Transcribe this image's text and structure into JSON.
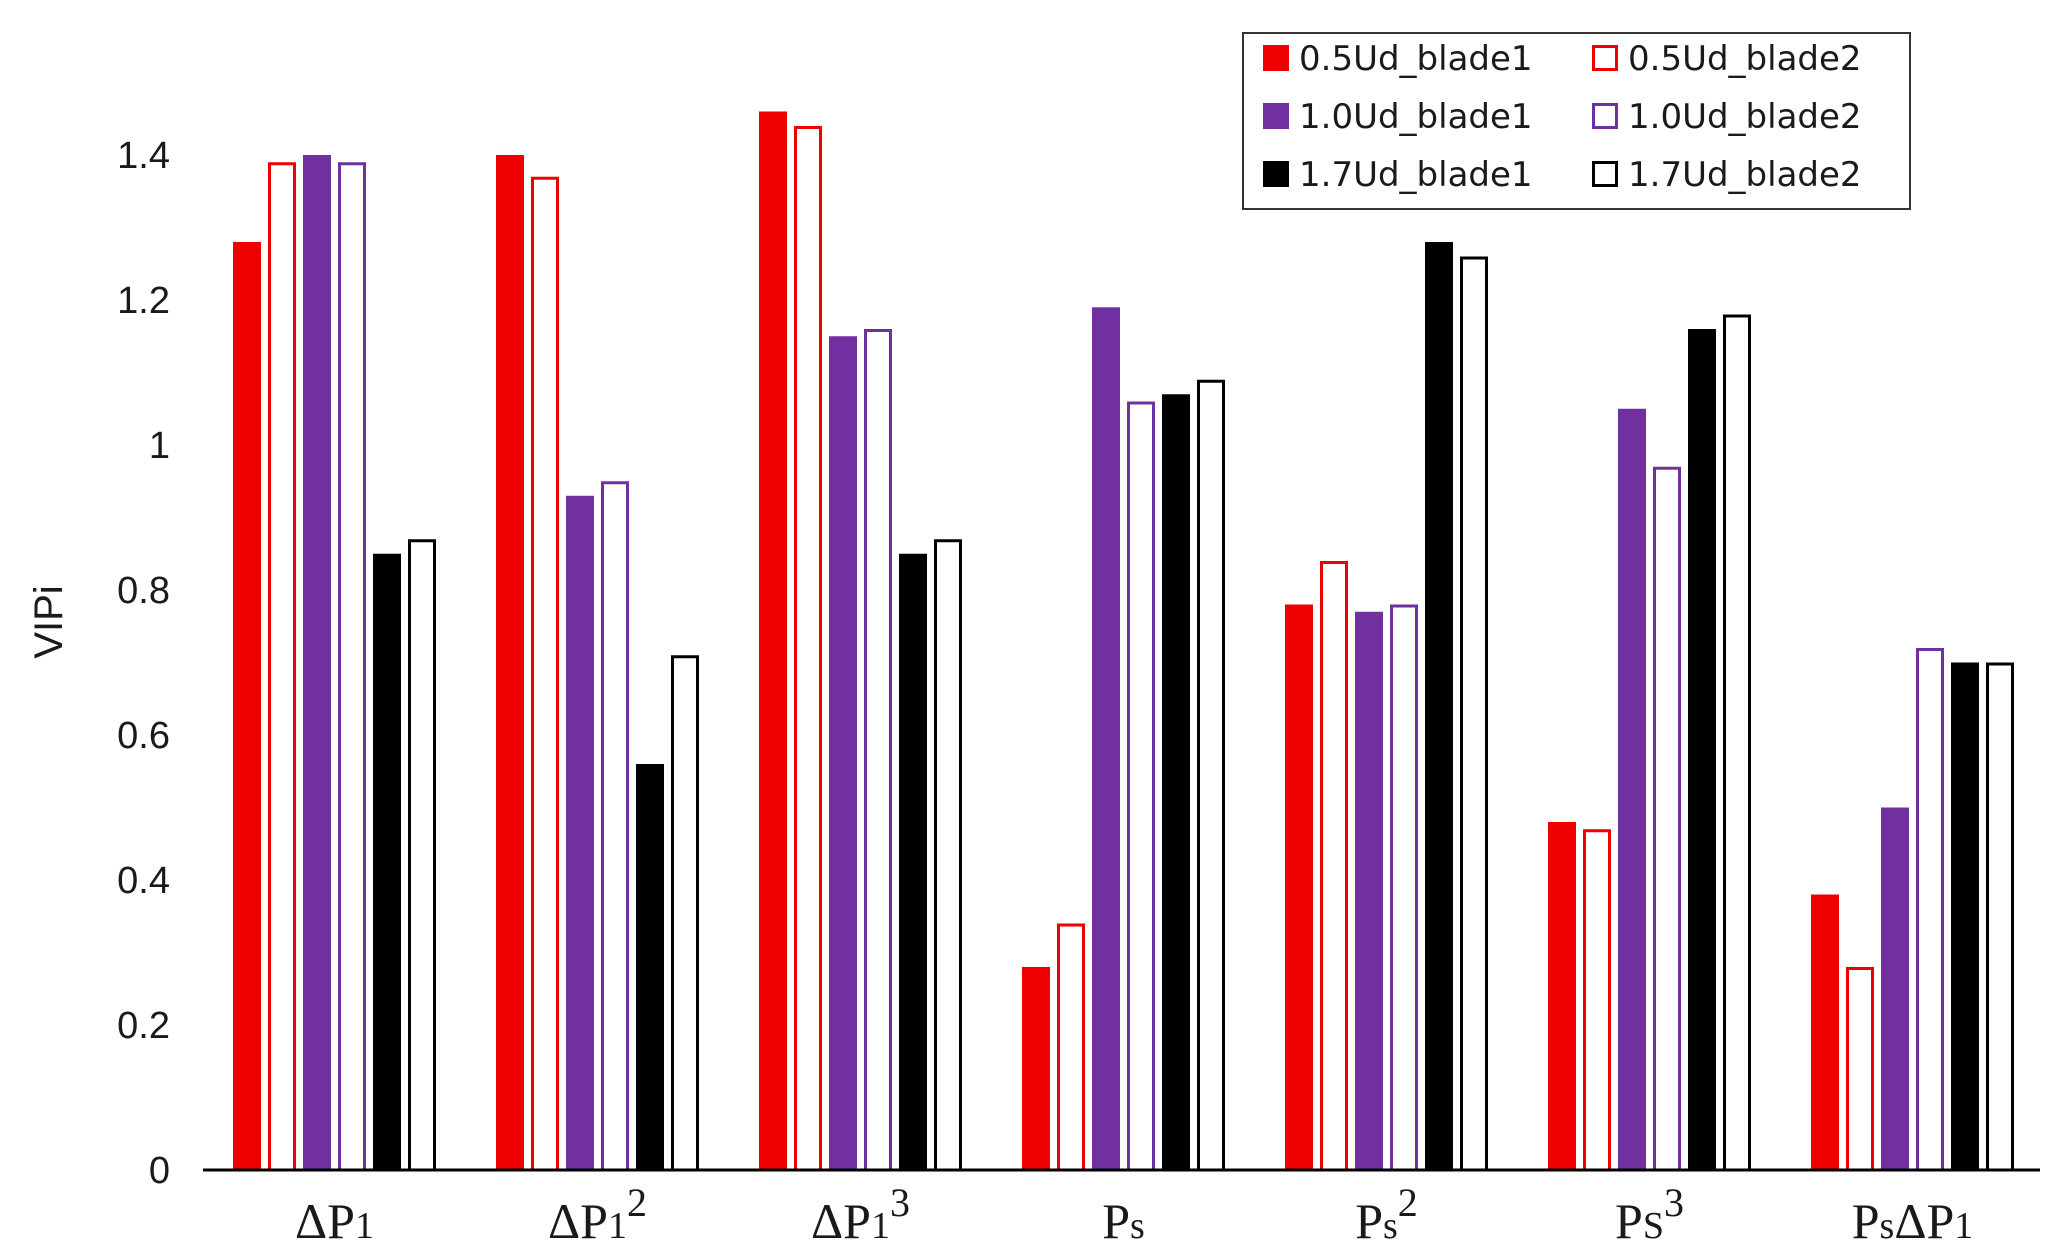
{
  "chart_data": {
    "type": "bar",
    "title": "",
    "xlabel": "",
    "ylabel": "VIPi",
    "ylim": [
      0,
      1.4
    ],
    "yticks": [
      "0",
      "0.2",
      "0.4",
      "0.6",
      "0.8",
      "1",
      "1.2",
      "1.4"
    ],
    "grid": false,
    "legend_position": "top-right",
    "categories": [
      {
        "base": "ΔP",
        "sub": "1",
        "sup": ""
      },
      {
        "base": "ΔP",
        "sub": "1",
        "sup": "2"
      },
      {
        "base": "ΔP",
        "sub": "1",
        "sup": "3"
      },
      {
        "base": "P",
        "sub": "s",
        "sup": ""
      },
      {
        "base": "P",
        "sub": "s",
        "sup": "2"
      },
      {
        "base": "P",
        "sub": "S",
        "sup": "3"
      },
      {
        "base": "P",
        "sub": "s",
        "base2": "ΔP",
        "sub2": "1"
      }
    ],
    "series": [
      {
        "name": "0.5Ud_blade1",
        "color": "#ee0000",
        "filled": true,
        "values": [
          1.28,
          1.4,
          1.46,
          0.28,
          0.78,
          0.48,
          0.38
        ]
      },
      {
        "name": "0.5Ud_blade2",
        "color": "#ee0000",
        "filled": false,
        "values": [
          1.39,
          1.37,
          1.44,
          0.34,
          0.84,
          0.47,
          0.28
        ]
      },
      {
        "name": "1.0Ud_blade1",
        "color": "#7030a0",
        "filled": true,
        "values": [
          1.4,
          0.93,
          1.15,
          1.19,
          0.77,
          1.05,
          0.5
        ]
      },
      {
        "name": "1.0Ud_blade2",
        "color": "#7030a0",
        "filled": false,
        "values": [
          1.39,
          0.95,
          1.16,
          1.06,
          0.78,
          0.97,
          0.72
        ]
      },
      {
        "name": "1.7Ud_blade1",
        "color": "#000000",
        "filled": true,
        "values": [
          0.85,
          0.56,
          0.85,
          1.07,
          1.28,
          1.16,
          0.7
        ]
      },
      {
        "name": "1.7Ud_blade2",
        "color": "#000000",
        "filled": false,
        "values": [
          0.87,
          0.71,
          0.87,
          1.09,
          1.26,
          1.18,
          0.7
        ]
      }
    ]
  }
}
